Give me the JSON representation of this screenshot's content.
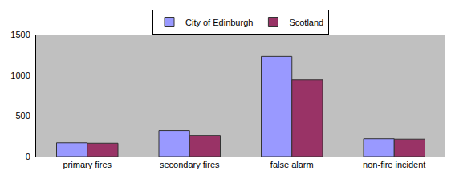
{
  "chart_data": {
    "type": "bar",
    "categories": [
      "primary fires",
      "secondary fires",
      "false alarm",
      "non-fire incident"
    ],
    "series": [
      {
        "name": "City of Edinburgh",
        "color": "#9999ff",
        "values": [
          170,
          320,
          1230,
          220
        ]
      },
      {
        "name": "Scotland",
        "color": "#993366",
        "values": [
          165,
          260,
          940,
          215
        ]
      }
    ],
    "ylim": [
      0,
      1500
    ],
    "yticks": [
      0,
      500,
      1000,
      1500
    ],
    "grid": false,
    "legend": "top"
  }
}
